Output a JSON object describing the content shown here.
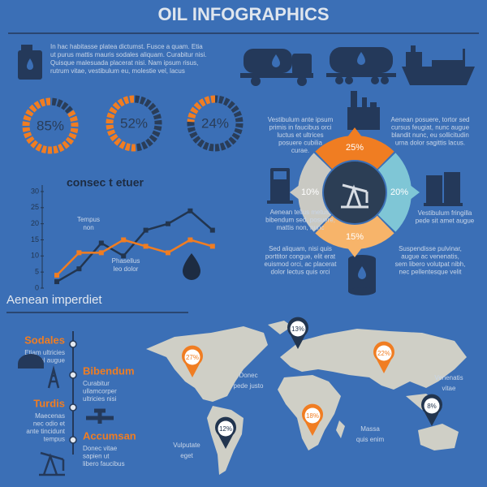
{
  "header": {
    "title": "OIL INFOGRAPHICS",
    "intro": [
      "In hac habitasse platea dictumst. Fusce a quam. Etia",
      "ut purus mattis mauris sodales aliquam. Curabitur nisi.",
      "Quisque malesuada placerat nisi.  Nam ipsum risus,",
      "rutrum vitae, vestibulum eu, molestie vel, lacus"
    ]
  },
  "gauges": [
    {
      "value": 85,
      "label": "85%"
    },
    {
      "value": 52,
      "label": "52%"
    },
    {
      "value": 24,
      "label": "24%"
    }
  ],
  "chart_data": {
    "type": "line",
    "title": "consec  t etuer",
    "annotations": [
      [
        "Tempus",
        "non"
      ],
      [
        "Phasellus",
        "leo dolor"
      ]
    ],
    "series": [
      {
        "color": "#22354f",
        "values": [
          2,
          6,
          14,
          10,
          18,
          20,
          24,
          18
        ]
      },
      {
        "color": "#f07d22",
        "values": [
          4,
          11,
          11,
          15,
          13,
          11,
          15,
          13
        ]
      }
    ],
    "ylim": [
      0,
      30
    ],
    "yticks": [
      0,
      5,
      10,
      15,
      20,
      25,
      30
    ]
  },
  "ring": {
    "segments": [
      "25%",
      "20%",
      "15%",
      "10%"
    ],
    "notes": [
      [
        "Vestibulum ante ipsum",
        "primis in faucibus orci",
        "luctus et ultrices",
        "posuere cubilia",
        "curae."
      ],
      [
        "Aenean posuere, tortor sed",
        "cursus feugiat, nunc augue",
        "blandit nunc, eu sollicitudin",
        "urna dolor sagittis lacus."
      ],
      [
        "Aenean tellus metus,",
        "bibendum sed, posuere,",
        "mattis non, nunc"
      ],
      [
        "Vestibulum fringilla",
        "pede sit amet augue"
      ],
      [
        "Sed aliquam, nisi quis",
        "porttitor congue, elit erat",
        "euismod orci, ac placerat",
        "dolor lectus quis orci"
      ],
      [
        "Suspendisse pulvinar,",
        "augue ac venenatis,",
        "sem libero volutpat nibh,",
        "nec pellentesque velit"
      ]
    ]
  },
  "timeline": {
    "title": "Aenean imperdiet",
    "items": [
      {
        "name": "Sodales",
        "text": [
          "Etiam ultricies",
          "nisi vel augue"
        ]
      },
      {
        "name": "Bibendum",
        "text": [
          "Curabitur",
          "ullamcorper",
          "ultricies nisi"
        ]
      },
      {
        "name": "Turdis",
        "text": [
          "Maecenas",
          "nec odio et",
          "ante tincidunt",
          "tempus"
        ]
      },
      {
        "name": "Accumsan",
        "text": [
          "Donec vitae",
          "sapien ut",
          "libero faucibus"
        ]
      }
    ]
  },
  "map": {
    "pins": [
      "13%",
      "27%",
      "22%",
      "18%",
      "12%",
      "8%"
    ],
    "labels": [
      [
        "Donec",
        "pede justo"
      ],
      [
        "Venenatis",
        "vitae"
      ],
      [
        "Massa",
        "quis enim"
      ],
      [
        "Vulputate",
        "eget"
      ]
    ]
  }
}
